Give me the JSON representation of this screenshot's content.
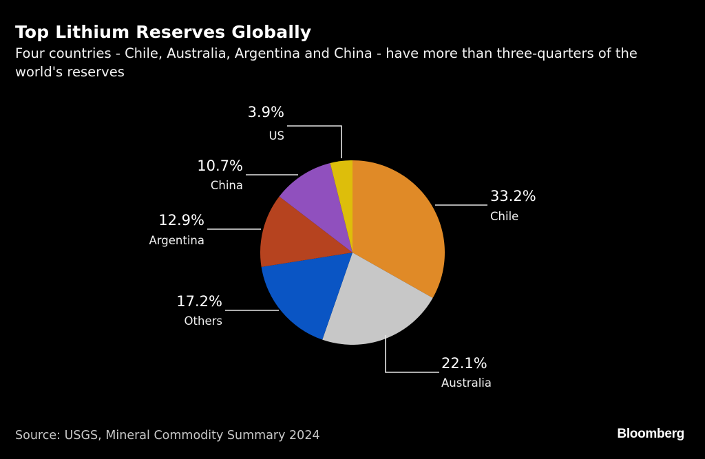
{
  "header": {
    "title": "Top Lithium Reserves Globally",
    "subtitle": "Four countries - Chile, Australia, Argentina and China - have more than three-quarters of the world's reserves"
  },
  "footer": {
    "source": "Source: USGS, Mineral Commodity Summary 2024",
    "brand": "Bloomberg"
  },
  "chart_data": {
    "type": "pie",
    "title": "Top Lithium Reserves Globally",
    "subtitle": "Four countries - Chile, Australia, Argentina and China - have more than three-quarters of the world's reserves",
    "unit": "%",
    "start_angle": "12 o'clock",
    "direction": "clockwise",
    "slices": [
      {
        "label": "Chile",
        "value": 33.2,
        "value_label": "33.2%",
        "color": "#E08A27"
      },
      {
        "label": "Australia",
        "value": 22.1,
        "value_label": "22.1%",
        "color": "#C7C7C7"
      },
      {
        "label": "Others",
        "value": 17.2,
        "value_label": "17.2%",
        "color": "#0A55C4"
      },
      {
        "label": "Argentina",
        "value": 12.9,
        "value_label": "12.9%",
        "color": "#B6431F"
      },
      {
        "label": "China",
        "value": 10.7,
        "value_label": "10.7%",
        "color": "#9050BE"
      },
      {
        "label": "US",
        "value": 3.9,
        "value_label": "3.9%",
        "color": "#DDBE0B"
      }
    ],
    "source": "Source: USGS, Mineral Commodity Summary 2024"
  }
}
